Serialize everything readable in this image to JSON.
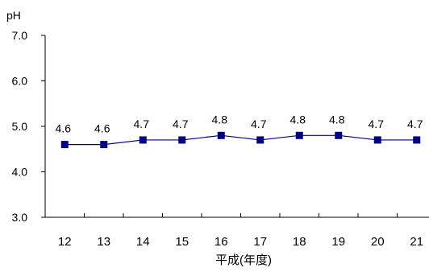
{
  "chart_data": {
    "type": "line",
    "title": "",
    "ylabel": "pH",
    "xlabel": "平成(年度)",
    "categories": [
      "12",
      "13",
      "14",
      "15",
      "16",
      "17",
      "18",
      "19",
      "20",
      "21"
    ],
    "series": [
      {
        "values": [
          4.6,
          4.6,
          4.7,
          4.7,
          4.8,
          4.7,
          4.8,
          4.8,
          4.7,
          4.7
        ],
        "data_labels": [
          "4.6",
          "4.6",
          "4.7",
          "4.7",
          "4.8",
          "4.7",
          "4.8",
          "4.8",
          "4.7",
          "4.7"
        ]
      }
    ],
    "ylim": [
      3.0,
      7.0
    ],
    "y_ticks": [
      "3.0",
      "4.0",
      "5.0",
      "6.0",
      "7.0"
    ],
    "grid": false,
    "legend": "none",
    "marker": "square",
    "colors": {
      "line": "#000080",
      "marker": "#000080",
      "axis": "#000000"
    }
  }
}
